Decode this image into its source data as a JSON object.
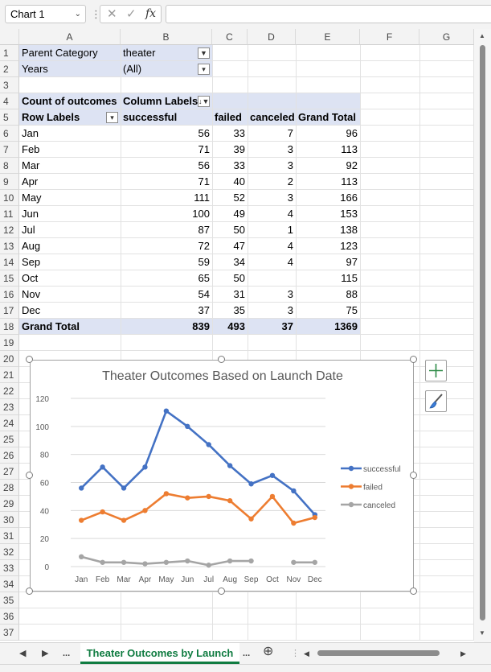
{
  "formula_bar": {
    "name_box": "Chart 1",
    "cancel_icon": "✕",
    "confirm_icon": "✓",
    "fx_label": "fx",
    "formula": ""
  },
  "columns": [
    "A",
    "B",
    "C",
    "D",
    "E",
    "F",
    "G"
  ],
  "rows": [
    "1",
    "2",
    "3",
    "4",
    "5",
    "6",
    "7",
    "8",
    "9",
    "10",
    "11",
    "12",
    "13",
    "14",
    "15",
    "16",
    "17",
    "18",
    "19",
    "20",
    "21",
    "22",
    "23",
    "24",
    "25",
    "26",
    "27",
    "28",
    "29",
    "30",
    "31",
    "32",
    "33",
    "34",
    "35",
    "36",
    "37"
  ],
  "pivot": {
    "filter1_label": "Parent Category",
    "filter1_value": "theater",
    "filter2_label": "Years",
    "filter2_value": "(All)",
    "values_label": "Count of outcomes",
    "column_labels": "Column Labels",
    "row_labels": "Row Labels",
    "headers": [
      "successful",
      "failed",
      "canceled",
      "Grand Total"
    ],
    "data": [
      {
        "month": "Jan",
        "successful": "56",
        "failed": "33",
        "canceled": "7",
        "total": "96"
      },
      {
        "month": "Feb",
        "successful": "71",
        "failed": "39",
        "canceled": "3",
        "total": "113"
      },
      {
        "month": "Mar",
        "successful": "56",
        "failed": "33",
        "canceled": "3",
        "total": "92"
      },
      {
        "month": "Apr",
        "successful": "71",
        "failed": "40",
        "canceled": "2",
        "total": "113"
      },
      {
        "month": "May",
        "successful": "111",
        "failed": "52",
        "canceled": "3",
        "total": "166"
      },
      {
        "month": "Jun",
        "successful": "100",
        "failed": "49",
        "canceled": "4",
        "total": "153"
      },
      {
        "month": "Jul",
        "successful": "87",
        "failed": "50",
        "canceled": "1",
        "total": "138"
      },
      {
        "month": "Aug",
        "successful": "72",
        "failed": "47",
        "canceled": "4",
        "total": "123"
      },
      {
        "month": "Sep",
        "successful": "59",
        "failed": "34",
        "canceled": "4",
        "total": "97"
      },
      {
        "month": "Oct",
        "successful": "65",
        "failed": "50",
        "canceled": "",
        "total": "115"
      },
      {
        "month": "Nov",
        "successful": "54",
        "failed": "31",
        "canceled": "3",
        "total": "88"
      },
      {
        "month": "Dec",
        "successful": "37",
        "failed": "35",
        "canceled": "3",
        "total": "75"
      }
    ],
    "grand_total": {
      "label": "Grand Total",
      "successful": "839",
      "failed": "493",
      "canceled": "37",
      "total": "1369"
    }
  },
  "chart_data": {
    "type": "line",
    "title": "Theater Outcomes Based on Launch Date",
    "categories": [
      "Jan",
      "Feb",
      "Mar",
      "Apr",
      "May",
      "Jun",
      "Jul",
      "Aug",
      "Sep",
      "Oct",
      "Nov",
      "Dec"
    ],
    "series": [
      {
        "name": "successful",
        "color": "#4472c4",
        "values": [
          56,
          71,
          56,
          71,
          111,
          100,
          87,
          72,
          59,
          65,
          54,
          37
        ]
      },
      {
        "name": "failed",
        "color": "#ed7d31",
        "values": [
          33,
          39,
          33,
          40,
          52,
          49,
          50,
          47,
          34,
          50,
          31,
          35
        ]
      },
      {
        "name": "canceled",
        "color": "#a5a5a5",
        "values": [
          7,
          3,
          3,
          2,
          3,
          4,
          1,
          4,
          4,
          null,
          3,
          3
        ]
      }
    ],
    "ylim": [
      0,
      120
    ],
    "yticks": [
      "0",
      "20",
      "40",
      "60",
      "80",
      "100",
      "120"
    ],
    "grid": true,
    "legend": "right"
  },
  "chart_tools": {
    "elements_icon": "plus-icon",
    "styles_icon": "brush-icon"
  },
  "tabs": {
    "sheet_name": "Theater Outcomes by Launch",
    "ellipsis_left": "...",
    "ellipsis_right": "...",
    "add_icon": "⊕"
  }
}
